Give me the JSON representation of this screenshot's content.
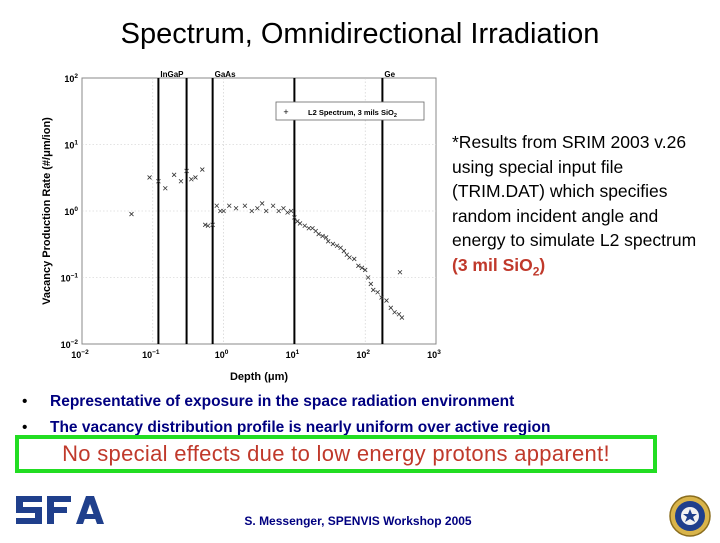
{
  "slide": {
    "title": "Spectrum, Omnidirectional Irradiation",
    "note_text": "*Results from SRIM 2003 v.26 using special input file (TRIM.DAT) which specifies random incident angle and energy to simulate L2 spectrum",
    "note_highlight_open": "(3 mil Si",
    "note_highlight_sub": "O",
    "note_highlight_subscript": "2",
    "note_highlight_close": ")",
    "bullets": [
      "Representative of exposure in the space radiation environment",
      "The vacancy distribution profile is nearly uniform over active region"
    ],
    "callout": "No special effects due to low energy protons apparent!",
    "footer": "S. Messenger, SPENVIS Workshop 2005",
    "logo_text": "SFA",
    "colors": {
      "title": "#000000",
      "bullet_text": "#000080",
      "highlight": "#c0392b",
      "callout_border": "#22dd22",
      "callout_text": "#c0392b",
      "logo": "#1f3f8c"
    }
  },
  "chart_data": {
    "type": "scatter",
    "title": "",
    "xlabel": "Depth (μm)",
    "ylabel": "Vacancy Production Rate (#/μm/ion)",
    "xscale": "log",
    "yscale": "log",
    "xlim": [
      0.01,
      1000
    ],
    "ylim": [
      0.01,
      100
    ],
    "x_ticks": [
      "10-2",
      "10-1",
      "100",
      "101",
      "102",
      "103"
    ],
    "y_ticks": [
      "10-2",
      "10-1",
      "100",
      "101",
      "102"
    ],
    "legend": {
      "marker": "+",
      "label": "L2 Spectrum, 3 mils SiO",
      "label_sub": "2",
      "position": "top-right"
    },
    "layer_labels": [
      {
        "label": "InGaP",
        "x": 0.12
      },
      {
        "label": "GaAs",
        "x": 0.7
      },
      {
        "label": "Ge",
        "x": 175
      }
    ],
    "layer_boundaries": [
      0.12,
      0.3,
      0.7,
      10,
      175
    ],
    "series": [
      {
        "marker": "x",
        "points": [
          [
            0.05,
            0.9
          ],
          [
            0.09,
            3.2
          ],
          [
            0.12,
            2.8
          ],
          [
            0.15,
            2.2
          ],
          [
            0.2,
            3.5
          ],
          [
            0.25,
            2.8
          ],
          [
            0.3,
            4.0
          ],
          [
            0.35,
            3.0
          ],
          [
            0.4,
            3.2
          ],
          [
            0.5,
            4.2
          ],
          [
            0.55,
            0.62
          ],
          [
            0.6,
            0.6
          ],
          [
            0.7,
            0.62
          ],
          [
            0.8,
            1.2
          ],
          [
            0.9,
            1.0
          ],
          [
            1.0,
            1.0
          ],
          [
            1.2,
            1.2
          ],
          [
            1.5,
            1.1
          ],
          [
            2.0,
            1.2
          ],
          [
            2.5,
            1.0
          ],
          [
            3.0,
            1.1
          ],
          [
            3.5,
            1.3
          ],
          [
            4.0,
            1.0
          ],
          [
            5.0,
            1.2
          ],
          [
            6.0,
            1.0
          ],
          [
            7.0,
            1.1
          ],
          [
            8.0,
            0.95
          ],
          [
            9.0,
            1.0
          ],
          [
            10,
            0.8
          ],
          [
            11,
            0.7
          ],
          [
            12,
            0.65
          ],
          [
            14,
            0.6
          ],
          [
            16,
            0.55
          ],
          [
            18,
            0.55
          ],
          [
            20,
            0.5
          ],
          [
            22,
            0.45
          ],
          [
            25,
            0.42
          ],
          [
            28,
            0.4
          ],
          [
            30,
            0.35
          ],
          [
            35,
            0.32
          ],
          [
            40,
            0.3
          ],
          [
            45,
            0.28
          ],
          [
            50,
            0.25
          ],
          [
            55,
            0.22
          ],
          [
            60,
            0.2
          ],
          [
            70,
            0.19
          ],
          [
            80,
            0.15
          ],
          [
            90,
            0.14
          ],
          [
            100,
            0.13
          ],
          [
            110,
            0.1
          ],
          [
            120,
            0.08
          ],
          [
            130,
            0.065
          ],
          [
            150,
            0.06
          ],
          [
            170,
            0.05
          ],
          [
            200,
            0.045
          ],
          [
            230,
            0.035
          ],
          [
            260,
            0.03
          ],
          [
            300,
            0.028
          ],
          [
            310,
            0.12
          ],
          [
            330,
            0.025
          ]
        ]
      }
    ]
  }
}
